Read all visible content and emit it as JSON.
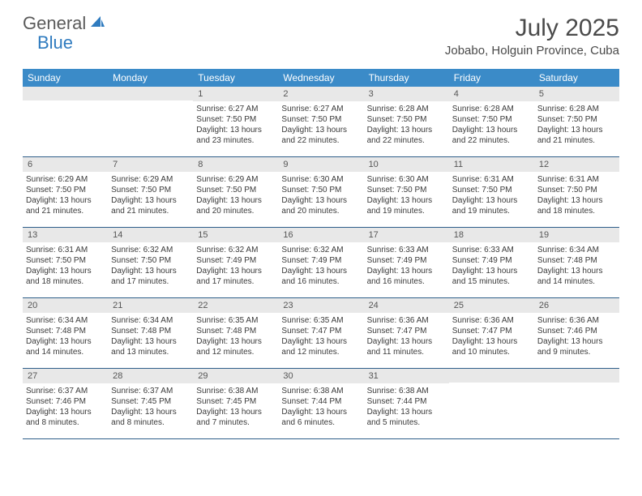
{
  "logo": {
    "text1": "General",
    "text2": "Blue"
  },
  "header": {
    "title": "July 2025",
    "location": "Jobabo, Holguin Province, Cuba"
  },
  "colors": {
    "header_bg": "#3b8bc8",
    "header_text": "#ffffff",
    "daynum_bg": "#e8e8e8",
    "border": "#2f5f8a",
    "text": "#3a3a3a",
    "title": "#4a4a4a",
    "logo_general": "#5a5a5a",
    "logo_blue": "#2f7bbf"
  },
  "dayNames": [
    "Sunday",
    "Monday",
    "Tuesday",
    "Wednesday",
    "Thursday",
    "Friday",
    "Saturday"
  ],
  "weeks": [
    [
      {
        "n": "",
        "lines": []
      },
      {
        "n": "",
        "lines": []
      },
      {
        "n": "1",
        "lines": [
          "Sunrise: 6:27 AM",
          "Sunset: 7:50 PM",
          "Daylight: 13 hours",
          "and 23 minutes."
        ]
      },
      {
        "n": "2",
        "lines": [
          "Sunrise: 6:27 AM",
          "Sunset: 7:50 PM",
          "Daylight: 13 hours",
          "and 22 minutes."
        ]
      },
      {
        "n": "3",
        "lines": [
          "Sunrise: 6:28 AM",
          "Sunset: 7:50 PM",
          "Daylight: 13 hours",
          "and 22 minutes."
        ]
      },
      {
        "n": "4",
        "lines": [
          "Sunrise: 6:28 AM",
          "Sunset: 7:50 PM",
          "Daylight: 13 hours",
          "and 22 minutes."
        ]
      },
      {
        "n": "5",
        "lines": [
          "Sunrise: 6:28 AM",
          "Sunset: 7:50 PM",
          "Daylight: 13 hours",
          "and 21 minutes."
        ]
      }
    ],
    [
      {
        "n": "6",
        "lines": [
          "Sunrise: 6:29 AM",
          "Sunset: 7:50 PM",
          "Daylight: 13 hours",
          "and 21 minutes."
        ]
      },
      {
        "n": "7",
        "lines": [
          "Sunrise: 6:29 AM",
          "Sunset: 7:50 PM",
          "Daylight: 13 hours",
          "and 21 minutes."
        ]
      },
      {
        "n": "8",
        "lines": [
          "Sunrise: 6:29 AM",
          "Sunset: 7:50 PM",
          "Daylight: 13 hours",
          "and 20 minutes."
        ]
      },
      {
        "n": "9",
        "lines": [
          "Sunrise: 6:30 AM",
          "Sunset: 7:50 PM",
          "Daylight: 13 hours",
          "and 20 minutes."
        ]
      },
      {
        "n": "10",
        "lines": [
          "Sunrise: 6:30 AM",
          "Sunset: 7:50 PM",
          "Daylight: 13 hours",
          "and 19 minutes."
        ]
      },
      {
        "n": "11",
        "lines": [
          "Sunrise: 6:31 AM",
          "Sunset: 7:50 PM",
          "Daylight: 13 hours",
          "and 19 minutes."
        ]
      },
      {
        "n": "12",
        "lines": [
          "Sunrise: 6:31 AM",
          "Sunset: 7:50 PM",
          "Daylight: 13 hours",
          "and 18 minutes."
        ]
      }
    ],
    [
      {
        "n": "13",
        "lines": [
          "Sunrise: 6:31 AM",
          "Sunset: 7:50 PM",
          "Daylight: 13 hours",
          "and 18 minutes."
        ]
      },
      {
        "n": "14",
        "lines": [
          "Sunrise: 6:32 AM",
          "Sunset: 7:50 PM",
          "Daylight: 13 hours",
          "and 17 minutes."
        ]
      },
      {
        "n": "15",
        "lines": [
          "Sunrise: 6:32 AM",
          "Sunset: 7:49 PM",
          "Daylight: 13 hours",
          "and 17 minutes."
        ]
      },
      {
        "n": "16",
        "lines": [
          "Sunrise: 6:32 AM",
          "Sunset: 7:49 PM",
          "Daylight: 13 hours",
          "and 16 minutes."
        ]
      },
      {
        "n": "17",
        "lines": [
          "Sunrise: 6:33 AM",
          "Sunset: 7:49 PM",
          "Daylight: 13 hours",
          "and 16 minutes."
        ]
      },
      {
        "n": "18",
        "lines": [
          "Sunrise: 6:33 AM",
          "Sunset: 7:49 PM",
          "Daylight: 13 hours",
          "and 15 minutes."
        ]
      },
      {
        "n": "19",
        "lines": [
          "Sunrise: 6:34 AM",
          "Sunset: 7:48 PM",
          "Daylight: 13 hours",
          "and 14 minutes."
        ]
      }
    ],
    [
      {
        "n": "20",
        "lines": [
          "Sunrise: 6:34 AM",
          "Sunset: 7:48 PM",
          "Daylight: 13 hours",
          "and 14 minutes."
        ]
      },
      {
        "n": "21",
        "lines": [
          "Sunrise: 6:34 AM",
          "Sunset: 7:48 PM",
          "Daylight: 13 hours",
          "and 13 minutes."
        ]
      },
      {
        "n": "22",
        "lines": [
          "Sunrise: 6:35 AM",
          "Sunset: 7:48 PM",
          "Daylight: 13 hours",
          "and 12 minutes."
        ]
      },
      {
        "n": "23",
        "lines": [
          "Sunrise: 6:35 AM",
          "Sunset: 7:47 PM",
          "Daylight: 13 hours",
          "and 12 minutes."
        ]
      },
      {
        "n": "24",
        "lines": [
          "Sunrise: 6:36 AM",
          "Sunset: 7:47 PM",
          "Daylight: 13 hours",
          "and 11 minutes."
        ]
      },
      {
        "n": "25",
        "lines": [
          "Sunrise: 6:36 AM",
          "Sunset: 7:47 PM",
          "Daylight: 13 hours",
          "and 10 minutes."
        ]
      },
      {
        "n": "26",
        "lines": [
          "Sunrise: 6:36 AM",
          "Sunset: 7:46 PM",
          "Daylight: 13 hours",
          "and 9 minutes."
        ]
      }
    ],
    [
      {
        "n": "27",
        "lines": [
          "Sunrise: 6:37 AM",
          "Sunset: 7:46 PM",
          "Daylight: 13 hours",
          "and 8 minutes."
        ]
      },
      {
        "n": "28",
        "lines": [
          "Sunrise: 6:37 AM",
          "Sunset: 7:45 PM",
          "Daylight: 13 hours",
          "and 8 minutes."
        ]
      },
      {
        "n": "29",
        "lines": [
          "Sunrise: 6:38 AM",
          "Sunset: 7:45 PM",
          "Daylight: 13 hours",
          "and 7 minutes."
        ]
      },
      {
        "n": "30",
        "lines": [
          "Sunrise: 6:38 AM",
          "Sunset: 7:44 PM",
          "Daylight: 13 hours",
          "and 6 minutes."
        ]
      },
      {
        "n": "31",
        "lines": [
          "Sunrise: 6:38 AM",
          "Sunset: 7:44 PM",
          "Daylight: 13 hours",
          "and 5 minutes."
        ]
      },
      {
        "n": "",
        "lines": []
      },
      {
        "n": "",
        "lines": []
      }
    ]
  ]
}
